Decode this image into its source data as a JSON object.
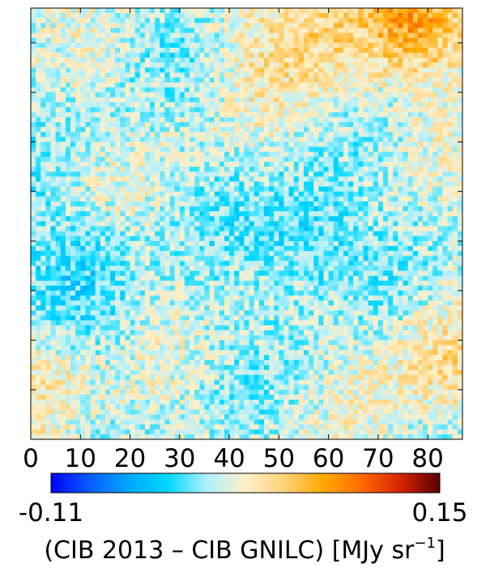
{
  "chart_data": {
    "type": "heatmap",
    "title": "",
    "xlabel": "",
    "ylabel": "",
    "x_ticks": [
      "0",
      "10",
      "20",
      "30",
      "40",
      "50",
      "60",
      "70",
      "80"
    ],
    "xlim": [
      0,
      87
    ],
    "grid_size": [
      87,
      87
    ],
    "colorbar": {
      "orientation": "horizontal",
      "placement": "below",
      "min_label": "-0.11",
      "max_label": "0.15",
      "vmin": -0.11,
      "vmax": 0.15,
      "label_prefix": "(CIB 2013 – CIB GNILC) [MJy sr",
      "label_exponent": "−1",
      "label_suffix": "]",
      "colors": [
        "#0000ff",
        "#0a5cff",
        "#00a8ff",
        "#00d8ff",
        "#aef0ff",
        "#fff0c8",
        "#ffd27a",
        "#ffaa00",
        "#ff6a00",
        "#d52200",
        "#5a0000"
      ]
    }
  }
}
